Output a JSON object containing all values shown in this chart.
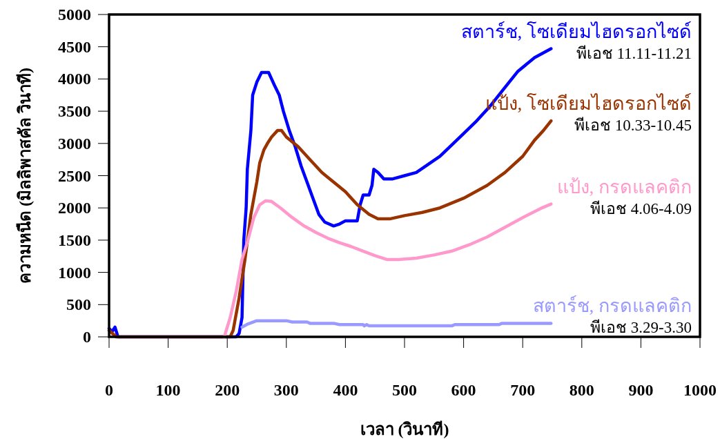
{
  "chart_data": {
    "type": "line",
    "xlabel": "เวลา (วินาที)",
    "ylabel": "ความหนืด (มิลลิพาสคัล วินาที)",
    "xlim": [
      0,
      1000
    ],
    "ylim": [
      0,
      5000
    ],
    "xticks": [
      0,
      100,
      200,
      300,
      400,
      500,
      600,
      700,
      800,
      900,
      1000
    ],
    "yticks": [
      0,
      500,
      1000,
      1500,
      2000,
      2500,
      3000,
      3500,
      4000,
      4500,
      5000
    ],
    "grid": false,
    "line_style": "solid",
    "series": [
      {
        "name": "สตาร์ช, โซเดียมไฮดรอกไซด์",
        "color": "#0000ff",
        "x": [
          0,
          5,
          10,
          15,
          200,
          215,
          220,
          225,
          228,
          232,
          234,
          240,
          243,
          250,
          258,
          270,
          275,
          280,
          288,
          295,
          305,
          315,
          325,
          335,
          345,
          355,
          365,
          380,
          390,
          400,
          420,
          425,
          430,
          440,
          445,
          448,
          455,
          465,
          480,
          500,
          520,
          560,
          595,
          620,
          645,
          670,
          692,
          720,
          748
        ],
        "values": [
          130,
          80,
          150,
          0,
          0,
          0,
          50,
          300,
          1500,
          2000,
          2600,
          3200,
          3750,
          3950,
          4100,
          4100,
          4000,
          3900,
          3750,
          3500,
          3200,
          2950,
          2650,
          2400,
          2150,
          1900,
          1780,
          1720,
          1750,
          1800,
          1800,
          2050,
          2200,
          2200,
          2350,
          2600,
          2550,
          2450,
          2450,
          2500,
          2550,
          2800,
          3110,
          3330,
          3580,
          3870,
          4120,
          4330,
          4470
        ]
      },
      {
        "name": "แป้ง, โซเดียมไฮดรอกไซด์",
        "color": "#993300",
        "x": [
          0,
          12,
          205,
          210,
          220,
          230,
          240,
          250,
          255,
          262,
          268,
          275,
          285,
          292,
          300,
          320,
          340,
          360,
          380,
          400,
          420,
          440,
          455,
          475,
          500,
          530,
          560,
          600,
          640,
          670,
          700,
          720,
          735,
          748
        ],
        "values": [
          100,
          0,
          0,
          100,
          600,
          1200,
          1900,
          2400,
          2700,
          2900,
          3000,
          3100,
          3200,
          3200,
          3100,
          2950,
          2750,
          2550,
          2400,
          2250,
          2050,
          1900,
          1830,
          1830,
          1880,
          1930,
          2000,
          2150,
          2350,
          2550,
          2800,
          3050,
          3200,
          3350
        ]
      },
      {
        "name": "แป้ง, กรดแลคติก",
        "color": "#ff99cc",
        "x": [
          195,
          205,
          215,
          225,
          235,
          245,
          255,
          265,
          275,
          290,
          310,
          330,
          350,
          370,
          390,
          410,
          430,
          450,
          470,
          490,
          520,
          550,
          580,
          610,
          640,
          670,
          700,
          730,
          748
        ],
        "values": [
          0,
          300,
          700,
          1200,
          1500,
          1850,
          2050,
          2110,
          2100,
          2000,
          1850,
          1720,
          1620,
          1530,
          1460,
          1400,
          1330,
          1260,
          1200,
          1200,
          1220,
          1270,
          1330,
          1430,
          1550,
          1700,
          1850,
          1990,
          2060
        ]
      },
      {
        "name": "สตาร์ช, กรดแลคติก",
        "color": "#9999ff",
        "x": [
          225,
          235,
          250,
          300,
          310,
          335,
          340,
          380,
          390,
          430,
          432,
          436,
          440,
          580,
          585,
          660,
          665,
          748
        ],
        "values": [
          150,
          200,
          250,
          250,
          230,
          230,
          210,
          210,
          190,
          190,
          170,
          190,
          170,
          170,
          190,
          190,
          210,
          210
        ]
      }
    ],
    "annotations": [
      "พีเอช 11.11-11.21",
      "พีเอช 10.33-10.45",
      "พีเอช 4.06-4.09",
      "พีเอช 3.29-3.30"
    ]
  }
}
